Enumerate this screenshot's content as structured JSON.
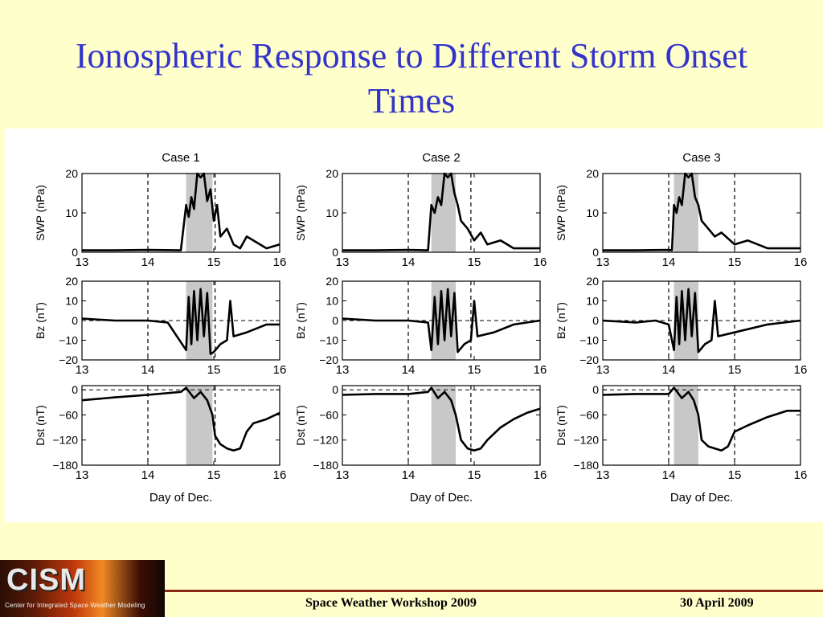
{
  "slide": {
    "title": "Ionospheric Response to Different Storm Onset Times",
    "logo_text": "CISM",
    "logo_subtext": "Center for Integrated Space Weather Modeling",
    "footer_event": "Space Weather Workshop 2009",
    "footer_date": "30 April 2009"
  },
  "chart_data": [
    {
      "type": "line",
      "case": "Case 1",
      "title": "Case 1",
      "x_range": [
        13,
        16
      ],
      "x_ticks": [
        13,
        14,
        15,
        16
      ],
      "xlabel": "Day of Dec.",
      "shade": [
        14.58,
        14.98
      ],
      "dashed_x": [
        14.0,
        15.02
      ],
      "panels": [
        {
          "ylabel": "SWP (nPa)",
          "ylim": [
            0,
            20
          ],
          "yticks": [
            0,
            10,
            20
          ],
          "x": [
            13.0,
            13.5,
            14.0,
            14.5,
            14.58,
            14.62,
            14.66,
            14.7,
            14.75,
            14.8,
            14.85,
            14.9,
            14.95,
            15.0,
            15.05,
            15.1,
            15.2,
            15.3,
            15.4,
            15.5,
            15.6,
            15.8,
            16.0
          ],
          "y": [
            0.5,
            0.5,
            0.6,
            0.5,
            12,
            9,
            14,
            11,
            20,
            19,
            20,
            13,
            16,
            8,
            12,
            4,
            6,
            2,
            1,
            4,
            3,
            1,
            2
          ]
        },
        {
          "ylabel": "Bz (nT)",
          "ylim": [
            -20,
            20
          ],
          "yticks": [
            -20,
            -10,
            0,
            10,
            20
          ],
          "zero_line": true,
          "x": [
            13.0,
            13.5,
            14.0,
            14.3,
            14.58,
            14.62,
            14.66,
            14.7,
            14.75,
            14.8,
            14.85,
            14.9,
            14.95,
            15.0,
            15.1,
            15.2,
            15.25,
            15.3,
            15.5,
            15.8,
            16.0
          ],
          "y": [
            1,
            0,
            0,
            -1,
            -15,
            12,
            -12,
            15,
            -10,
            16,
            -8,
            14,
            -17,
            -16,
            -12,
            -10,
            10,
            -8,
            -6,
            -2,
            -2
          ]
        },
        {
          "ylabel": "Dst (nT)",
          "ylim": [
            -180,
            10
          ],
          "yticks": [
            0,
            -60,
            -120,
            -180
          ],
          "zero_line": true,
          "x": [
            13.0,
            13.5,
            14.0,
            14.5,
            14.58,
            14.7,
            14.8,
            14.9,
            14.98,
            15.02,
            15.1,
            15.2,
            15.3,
            15.4,
            15.5,
            15.6,
            15.8,
            16.0
          ],
          "y": [
            -25,
            -18,
            -12,
            -5,
            5,
            -20,
            -5,
            -25,
            -60,
            -110,
            -130,
            -140,
            -145,
            -140,
            -100,
            -80,
            -70,
            -55
          ]
        }
      ]
    },
    {
      "type": "line",
      "case": "Case 2",
      "title": "Case 2",
      "x_range": [
        13,
        16
      ],
      "x_ticks": [
        13,
        14,
        15,
        16
      ],
      "xlabel": "Day of Dec.",
      "shade": [
        14.35,
        14.72
      ],
      "dashed_x": [
        14.0,
        14.95
      ],
      "panels": [
        {
          "ylabel": "SWP (nPa)",
          "ylim": [
            0,
            20
          ],
          "yticks": [
            0,
            10,
            20
          ],
          "x": [
            13.0,
            13.5,
            14.0,
            14.3,
            14.35,
            14.4,
            14.45,
            14.5,
            14.55,
            14.6,
            14.65,
            14.7,
            14.75,
            14.8,
            14.9,
            15.0,
            15.1,
            15.2,
            15.4,
            15.6,
            15.8,
            16.0
          ],
          "y": [
            0.5,
            0.5,
            0.6,
            0.5,
            12,
            10,
            14,
            12,
            20,
            19,
            20,
            15,
            12,
            8,
            6,
            3,
            5,
            2,
            3,
            1,
            1,
            1
          ]
        },
        {
          "ylabel": "Bz (nT)",
          "ylim": [
            -20,
            20
          ],
          "yticks": [
            -20,
            -10,
            0,
            10,
            20
          ],
          "zero_line": true,
          "x": [
            13.0,
            13.5,
            14.0,
            14.3,
            14.35,
            14.4,
            14.45,
            14.5,
            14.55,
            14.6,
            14.65,
            14.7,
            14.75,
            14.85,
            14.95,
            15.0,
            15.05,
            15.3,
            15.6,
            16.0
          ],
          "y": [
            1,
            0,
            0,
            -1,
            -15,
            12,
            -12,
            15,
            -10,
            16,
            -8,
            14,
            -16,
            -12,
            -10,
            10,
            -8,
            -6,
            -2,
            0
          ]
        },
        {
          "ylabel": "Dst (nT)",
          "ylim": [
            -180,
            10
          ],
          "yticks": [
            0,
            -60,
            -120,
            -180
          ],
          "zero_line": true,
          "x": [
            13.0,
            13.5,
            14.0,
            14.3,
            14.35,
            14.45,
            14.55,
            14.65,
            14.72,
            14.8,
            14.9,
            15.0,
            15.1,
            15.2,
            15.4,
            15.6,
            15.8,
            16.0
          ],
          "y": [
            -12,
            -10,
            -10,
            -5,
            5,
            -20,
            -5,
            -25,
            -60,
            -120,
            -140,
            -145,
            -140,
            -120,
            -90,
            -70,
            -55,
            -45
          ]
        }
      ]
    },
    {
      "type": "line",
      "case": "Case 3",
      "title": "Case 3",
      "x_range": [
        13,
        16
      ],
      "x_ticks": [
        13,
        14,
        15,
        16
      ],
      "xlabel": "Day of Dec.",
      "shade": [
        14.08,
        14.45
      ],
      "dashed_x": [
        14.0,
        15.0
      ],
      "panels": [
        {
          "ylabel": "SWP (nPa)",
          "ylim": [
            0,
            20
          ],
          "yticks": [
            0,
            10,
            20
          ],
          "x": [
            13.0,
            13.5,
            14.0,
            14.05,
            14.08,
            14.12,
            14.16,
            14.2,
            14.25,
            14.3,
            14.35,
            14.4,
            14.45,
            14.5,
            14.6,
            14.7,
            14.8,
            15.0,
            15.2,
            15.5,
            15.8,
            16.0
          ],
          "y": [
            0.5,
            0.5,
            0.6,
            0.5,
            12,
            10,
            14,
            12,
            20,
            19,
            20,
            14,
            12,
            8,
            6,
            4,
            5,
            2,
            3,
            1,
            1,
            1
          ]
        },
        {
          "ylabel": "Bz (nT)",
          "ylim": [
            -20,
            20
          ],
          "yticks": [
            -20,
            -10,
            0,
            10,
            20
          ],
          "zero_line": true,
          "x": [
            13.0,
            13.5,
            13.8,
            14.0,
            14.08,
            14.12,
            14.16,
            14.2,
            14.25,
            14.3,
            14.35,
            14.4,
            14.45,
            14.55,
            14.65,
            14.7,
            14.75,
            15.0,
            15.5,
            16.0
          ],
          "y": [
            0,
            -1,
            0,
            -2,
            -15,
            12,
            -12,
            15,
            -10,
            16,
            -8,
            14,
            -16,
            -12,
            -10,
            10,
            -8,
            -6,
            -2,
            0
          ]
        },
        {
          "ylabel": "Dst (nT)",
          "ylim": [
            -180,
            10
          ],
          "yticks": [
            0,
            -60,
            -120,
            -180
          ],
          "zero_line": true,
          "x": [
            13.0,
            13.5,
            14.0,
            14.08,
            14.2,
            14.3,
            14.38,
            14.45,
            14.5,
            14.6,
            14.7,
            14.8,
            14.9,
            15.0,
            15.2,
            15.5,
            15.8,
            16.0
          ],
          "y": [
            -12,
            -10,
            -10,
            5,
            -20,
            -5,
            -25,
            -60,
            -120,
            -135,
            -140,
            -145,
            -135,
            -100,
            -85,
            -65,
            -50,
            -50
          ]
        }
      ]
    }
  ]
}
